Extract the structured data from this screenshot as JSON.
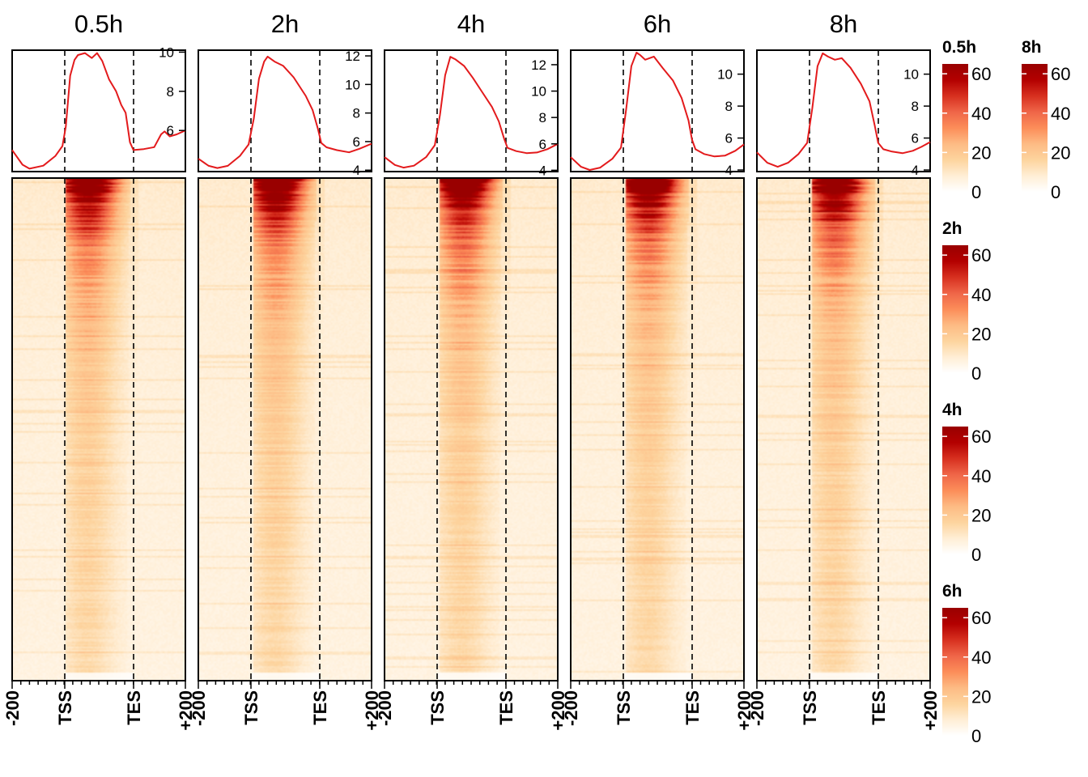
{
  "chart_data": {
    "type": "heatmap",
    "title": "",
    "x_tick_labels": [
      "-200",
      "TSS",
      "TES",
      "+200"
    ],
    "panels": [
      {
        "title": "0.5h",
        "profile": {
          "y_ticks": [
            6,
            8,
            10
          ],
          "ylim": [
            3.9,
            10.1
          ],
          "points": [
            [
              0,
              5.0
            ],
            [
              0.06,
              4.25
            ],
            [
              0.1,
              4.05
            ],
            [
              0.18,
              4.2
            ],
            [
              0.25,
              4.7
            ],
            [
              0.29,
              5.2
            ],
            [
              0.31,
              6.2
            ],
            [
              0.335,
              8.8
            ],
            [
              0.36,
              9.6
            ],
            [
              0.38,
              9.85
            ],
            [
              0.42,
              9.95
            ],
            [
              0.46,
              9.7
            ],
            [
              0.49,
              9.95
            ],
            [
              0.52,
              9.55
            ],
            [
              0.56,
              8.6
            ],
            [
              0.6,
              8.0
            ],
            [
              0.63,
              7.3
            ],
            [
              0.655,
              6.9
            ],
            [
              0.68,
              5.4
            ],
            [
              0.7,
              5.0
            ],
            [
              0.76,
              5.05
            ],
            [
              0.82,
              5.15
            ],
            [
              0.86,
              5.8
            ],
            [
              0.88,
              5.95
            ],
            [
              0.91,
              5.7
            ],
            [
              0.95,
              5.8
            ],
            [
              1.0,
              6.0
            ]
          ]
        }
      },
      {
        "title": "2h",
        "profile": {
          "y_ticks": [
            4,
            6,
            8,
            10,
            12
          ],
          "ylim": [
            3.9,
            12.4
          ],
          "points": [
            [
              0,
              4.8
            ],
            [
              0.06,
              4.3
            ],
            [
              0.11,
              4.15
            ],
            [
              0.17,
              4.3
            ],
            [
              0.24,
              5.0
            ],
            [
              0.29,
              5.8
            ],
            [
              0.32,
              7.6
            ],
            [
              0.35,
              10.4
            ],
            [
              0.38,
              11.6
            ],
            [
              0.4,
              11.95
            ],
            [
              0.44,
              11.6
            ],
            [
              0.49,
              11.3
            ],
            [
              0.55,
              10.5
            ],
            [
              0.62,
              9.2
            ],
            [
              0.66,
              8.2
            ],
            [
              0.69,
              6.9
            ],
            [
              0.71,
              5.9
            ],
            [
              0.74,
              5.6
            ],
            [
              0.8,
              5.4
            ],
            [
              0.87,
              5.25
            ],
            [
              0.93,
              5.5
            ],
            [
              1.0,
              5.85
            ]
          ]
        }
      },
      {
        "title": "4h",
        "profile": {
          "y_ticks": [
            4,
            6,
            8,
            10,
            12
          ],
          "ylim": [
            3.9,
            13.1
          ],
          "points": [
            [
              0,
              5.0
            ],
            [
              0.06,
              4.4
            ],
            [
              0.11,
              4.2
            ],
            [
              0.17,
              4.35
            ],
            [
              0.24,
              5.0
            ],
            [
              0.29,
              5.9
            ],
            [
              0.32,
              8.2
            ],
            [
              0.35,
              11.2
            ],
            [
              0.38,
              12.6
            ],
            [
              0.41,
              12.4
            ],
            [
              0.46,
              11.9
            ],
            [
              0.51,
              11.0
            ],
            [
              0.56,
              10.0
            ],
            [
              0.62,
              8.8
            ],
            [
              0.66,
              7.7
            ],
            [
              0.69,
              6.4
            ],
            [
              0.71,
              5.7
            ],
            [
              0.76,
              5.45
            ],
            [
              0.82,
              5.3
            ],
            [
              0.88,
              5.35
            ],
            [
              0.94,
              5.6
            ],
            [
              1.0,
              6.0
            ]
          ]
        }
      },
      {
        "title": "6h",
        "profile": {
          "y_ticks": [
            4,
            6,
            8,
            10
          ],
          "ylim": [
            3.9,
            11.5
          ],
          "points": [
            [
              0,
              4.8
            ],
            [
              0.06,
              4.2
            ],
            [
              0.11,
              4.0
            ],
            [
              0.17,
              4.15
            ],
            [
              0.24,
              4.7
            ],
            [
              0.29,
              5.4
            ],
            [
              0.32,
              7.8
            ],
            [
              0.35,
              10.5
            ],
            [
              0.38,
              11.35
            ],
            [
              0.4,
              11.2
            ],
            [
              0.43,
              10.9
            ],
            [
              0.48,
              11.1
            ],
            [
              0.53,
              10.4
            ],
            [
              0.59,
              9.6
            ],
            [
              0.64,
              8.5
            ],
            [
              0.68,
              7.1
            ],
            [
              0.7,
              5.9
            ],
            [
              0.72,
              5.3
            ],
            [
              0.77,
              5.0
            ],
            [
              0.83,
              4.85
            ],
            [
              0.89,
              4.9
            ],
            [
              0.95,
              5.2
            ],
            [
              1.0,
              5.6
            ]
          ]
        }
      },
      {
        "title": "8h",
        "profile": {
          "y_ticks": [
            4,
            6,
            8,
            10
          ],
          "ylim": [
            3.9,
            11.5
          ],
          "points": [
            [
              0,
              5.1
            ],
            [
              0.06,
              4.45
            ],
            [
              0.12,
              4.2
            ],
            [
              0.18,
              4.45
            ],
            [
              0.24,
              5.0
            ],
            [
              0.29,
              5.7
            ],
            [
              0.32,
              7.9
            ],
            [
              0.35,
              10.5
            ],
            [
              0.38,
              11.3
            ],
            [
              0.41,
              11.1
            ],
            [
              0.45,
              10.9
            ],
            [
              0.49,
              11.0
            ],
            [
              0.54,
              10.4
            ],
            [
              0.6,
              9.4
            ],
            [
              0.65,
              8.3
            ],
            [
              0.68,
              6.8
            ],
            [
              0.7,
              5.7
            ],
            [
              0.73,
              5.3
            ],
            [
              0.78,
              5.15
            ],
            [
              0.84,
              5.05
            ],
            [
              0.9,
              5.2
            ],
            [
              0.95,
              5.45
            ],
            [
              1.0,
              5.75
            ]
          ]
        }
      }
    ],
    "legends": [
      {
        "title": "0.5h",
        "ticks": [
          0,
          20,
          40,
          60
        ]
      },
      {
        "title": "2h",
        "ticks": [
          0,
          20,
          40,
          60
        ]
      },
      {
        "title": "4h",
        "ticks": [
          0,
          20,
          40,
          60
        ]
      },
      {
        "title": "6h",
        "ticks": [
          0,
          20,
          40,
          60
        ]
      },
      {
        "title": "8h",
        "ticks": [
          0,
          20,
          40,
          60
        ]
      }
    ],
    "colorscale": [
      "#ffffff",
      "#ffeed5",
      "#fdd49e",
      "#fdbb84",
      "#fc8d59",
      "#ef6548",
      "#d7301f",
      "#b30000",
      "#990000"
    ],
    "profile_color": "#e31a1c",
    "line_color": "#000000"
  }
}
